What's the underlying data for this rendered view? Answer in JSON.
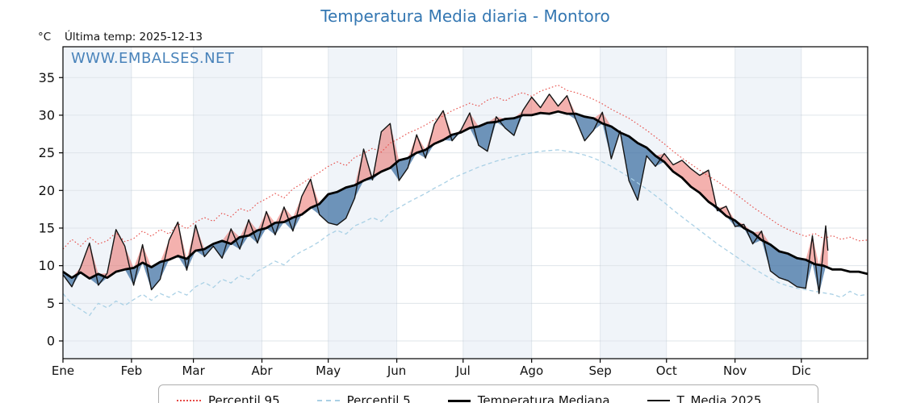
{
  "title": "Temperatura Media diaria - Montoro",
  "header": {
    "unit": "°C",
    "last_temp": "Última temp: 2025-12-13"
  },
  "watermark": "WWW.EMBALSES.NET",
  "colors": {
    "title_blue": "#3477b2",
    "watermark_blue": "#3a79b5",
    "p95_red": "#e64a45",
    "p5_blue": "#a9d0e5",
    "median_black": "#000000",
    "t2025_black": "#141414",
    "fill_above": "rgba(228,68,62,0.42)",
    "fill_below": "rgba(47,100,155,0.68)",
    "band_shade": "#f0f4f9",
    "grid": "#dfe5ea"
  },
  "chart_data": {
    "type": "line",
    "title": "Temperatura Media diaria - Montoro",
    "xlabel": "",
    "ylabel": "°C",
    "ylim": [
      -2.4,
      39.1
    ],
    "yticks": [
      0,
      5,
      10,
      15,
      20,
      25,
      30,
      35
    ],
    "grid": true,
    "legend_position": "bottom",
    "x_months": [
      "Ene",
      "Feb",
      "Mar",
      "Abr",
      "May",
      "Jun",
      "Jul",
      "Ago",
      "Sep",
      "Oct",
      "Nov",
      "Dic"
    ],
    "month_start_days": [
      1,
      32,
      60,
      91,
      121,
      152,
      182,
      213,
      244,
      274,
      305,
      335,
      366
    ],
    "shaded_months_alternate": true,
    "series": [
      {
        "name": "Percentil 95",
        "style": "dotted",
        "color": "#e64a45",
        "width": 1.1,
        "days": [
          1,
          5,
          9,
          13,
          17,
          21,
          25,
          29,
          33,
          37,
          41,
          45,
          49,
          53,
          57,
          61,
          65,
          69,
          73,
          77,
          81,
          85,
          89,
          93,
          97,
          101,
          105,
          109,
          113,
          117,
          121,
          125,
          129,
          133,
          137,
          141,
          145,
          149,
          153,
          157,
          161,
          165,
          169,
          173,
          177,
          181,
          185,
          189,
          193,
          197,
          201,
          205,
          209,
          213,
          217,
          221,
          225,
          229,
          233,
          237,
          241,
          245,
          249,
          253,
          257,
          261,
          265,
          269,
          273,
          277,
          281,
          285,
          289,
          293,
          297,
          301,
          305,
          309,
          313,
          317,
          321,
          325,
          329,
          333,
          337,
          341,
          345,
          349,
          353,
          357,
          361,
          365
        ],
        "values": [
          12.2,
          13.5,
          12.6,
          13.8,
          12.9,
          13.3,
          14.4,
          13.2,
          13.6,
          14.6,
          13.9,
          14.8,
          14.2,
          15.6,
          14.9,
          15.8,
          16.4,
          15.9,
          17.0,
          16.5,
          17.6,
          17.2,
          18.3,
          18.9,
          19.6,
          19.0,
          20.2,
          20.9,
          21.7,
          22.4,
          23.2,
          23.8,
          23.3,
          24.4,
          24.9,
          25.6,
          25.1,
          26.3,
          26.9,
          27.6,
          28.1,
          28.7,
          29.4,
          29.9,
          30.6,
          31.1,
          31.6,
          31.2,
          32.0,
          32.4,
          31.9,
          32.6,
          33.0,
          32.5,
          33.2,
          33.6,
          34.0,
          33.3,
          33.0,
          32.6,
          32.1,
          31.5,
          30.8,
          30.2,
          29.6,
          28.8,
          28.0,
          27.1,
          26.2,
          25.2,
          24.3,
          23.5,
          22.7,
          21.9,
          21.2,
          20.4,
          19.6,
          18.7,
          17.8,
          17.0,
          16.2,
          15.4,
          14.8,
          14.3,
          13.9,
          14.3,
          13.6,
          14.0,
          13.5,
          13.8,
          13.3,
          13.4
        ]
      },
      {
        "name": "Percentil 5",
        "style": "dashed",
        "color": "#a9d0e5",
        "width": 1.3,
        "days": [
          1,
          5,
          9,
          13,
          17,
          21,
          25,
          29,
          33,
          37,
          41,
          45,
          49,
          53,
          57,
          61,
          65,
          69,
          73,
          77,
          81,
          85,
          89,
          93,
          97,
          101,
          105,
          109,
          113,
          117,
          121,
          125,
          129,
          133,
          137,
          141,
          145,
          149,
          153,
          157,
          161,
          165,
          169,
          173,
          177,
          181,
          185,
          189,
          193,
          197,
          201,
          205,
          209,
          213,
          217,
          221,
          225,
          229,
          233,
          237,
          241,
          245,
          249,
          253,
          257,
          261,
          265,
          269,
          273,
          277,
          281,
          285,
          289,
          293,
          297,
          301,
          305,
          309,
          313,
          317,
          321,
          325,
          329,
          333,
          337,
          341,
          345,
          349,
          353,
          357,
          361,
          365
        ],
        "values": [
          6.3,
          4.9,
          4.2,
          3.4,
          5.0,
          4.4,
          5.3,
          4.7,
          5.5,
          6.2,
          5.4,
          6.3,
          5.8,
          6.6,
          6.1,
          7.2,
          7.8,
          7.1,
          8.2,
          7.7,
          8.7,
          8.2,
          9.3,
          9.9,
          10.6,
          10.1,
          11.2,
          11.9,
          12.5,
          13.2,
          14.1,
          14.7,
          14.2,
          15.3,
          15.8,
          16.4,
          15.9,
          17.1,
          17.7,
          18.4,
          19.0,
          19.6,
          20.3,
          20.9,
          21.6,
          22.1,
          22.6,
          23.1,
          23.5,
          23.9,
          24.2,
          24.5,
          24.8,
          25.0,
          25.2,
          25.3,
          25.4,
          25.2,
          25.0,
          24.7,
          24.3,
          23.8,
          23.2,
          22.5,
          21.8,
          21.0,
          20.2,
          19.3,
          18.4,
          17.4,
          16.5,
          15.6,
          14.7,
          13.8,
          12.9,
          12.1,
          11.3,
          10.5,
          9.7,
          9.0,
          8.3,
          7.7,
          7.3,
          7.0,
          6.8,
          6.6,
          6.4,
          6.2,
          5.8,
          6.6,
          6.0,
          6.2
        ]
      },
      {
        "name": "Temperatura Mediana",
        "style": "solid",
        "color": "#000000",
        "width": 2.8,
        "days": [
          1,
          5,
          9,
          13,
          17,
          21,
          25,
          29,
          33,
          37,
          41,
          45,
          49,
          53,
          57,
          61,
          65,
          69,
          73,
          77,
          81,
          85,
          89,
          93,
          97,
          101,
          105,
          109,
          113,
          117,
          121,
          125,
          129,
          133,
          137,
          141,
          145,
          149,
          153,
          157,
          161,
          165,
          169,
          173,
          177,
          181,
          185,
          189,
          193,
          197,
          201,
          205,
          209,
          213,
          217,
          221,
          225,
          229,
          233,
          237,
          241,
          245,
          249,
          253,
          257,
          261,
          265,
          269,
          273,
          277,
          281,
          285,
          289,
          293,
          297,
          301,
          305,
          309,
          313,
          317,
          321,
          325,
          329,
          333,
          337,
          341,
          345,
          349,
          353,
          357,
          361,
          365
        ],
        "values": [
          9.2,
          8.4,
          9.1,
          8.3,
          8.9,
          8.4,
          9.2,
          9.5,
          9.7,
          10.4,
          9.8,
          10.5,
          10.8,
          11.3,
          10.9,
          12.0,
          12.2,
          12.9,
          13.3,
          12.9,
          13.8,
          14.0,
          14.7,
          15.0,
          15.7,
          15.8,
          16.4,
          16.8,
          17.7,
          18.2,
          19.5,
          19.8,
          20.4,
          20.7,
          21.3,
          21.8,
          22.5,
          23.0,
          24.0,
          24.3,
          25.0,
          25.4,
          26.2,
          26.7,
          27.4,
          27.7,
          28.3,
          28.5,
          29.0,
          29.1,
          29.5,
          29.6,
          30.0,
          30.0,
          30.3,
          30.2,
          30.5,
          30.2,
          30.2,
          29.8,
          29.6,
          28.9,
          28.5,
          27.7,
          27.2,
          26.3,
          25.7,
          24.6,
          23.8,
          22.5,
          21.7,
          20.5,
          19.7,
          18.5,
          17.7,
          16.6,
          16.0,
          15.0,
          14.4,
          13.4,
          12.8,
          11.9,
          11.6,
          11.0,
          10.8,
          10.2,
          10.0,
          9.5,
          9.5,
          9.2,
          9.2,
          8.9
        ]
      },
      {
        "name": "T. Media 2025",
        "style": "solid",
        "color": "#141414",
        "width": 1.4,
        "days": [
          1,
          5,
          9,
          13,
          17,
          21,
          25,
          29,
          33,
          37,
          41,
          45,
          49,
          53,
          57,
          61,
          65,
          69,
          73,
          77,
          81,
          85,
          89,
          93,
          97,
          101,
          105,
          109,
          113,
          117,
          121,
          125,
          129,
          133,
          137,
          141,
          145,
          149,
          153,
          157,
          161,
          165,
          169,
          173,
          177,
          181,
          185,
          189,
          193,
          197,
          201,
          205,
          209,
          213,
          217,
          221,
          225,
          229,
          233,
          237,
          241,
          245,
          249,
          253,
          257,
          261,
          265,
          269,
          273,
          277,
          281,
          285,
          289,
          293,
          297,
          301,
          305,
          309,
          313,
          317,
          321,
          325,
          329,
          333,
          337,
          340,
          343,
          346,
          347
        ],
        "values": [
          8.8,
          7.2,
          9.8,
          13.0,
          7.4,
          9.0,
          14.8,
          12.6,
          7.4,
          12.8,
          6.8,
          8.2,
          13.4,
          15.8,
          9.4,
          15.4,
          11.2,
          12.6,
          11.0,
          14.9,
          12.2,
          16.1,
          13.0,
          17.2,
          14.1,
          17.8,
          14.6,
          19.2,
          21.5,
          16.8,
          15.7,
          15.4,
          16.3,
          19.0,
          25.5,
          21.4,
          27.8,
          28.9,
          21.3,
          23.0,
          27.4,
          24.3,
          28.8,
          30.6,
          26.6,
          28.0,
          30.3,
          26.0,
          25.2,
          29.8,
          28.3,
          27.3,
          30.6,
          32.4,
          31.0,
          32.8,
          31.2,
          32.6,
          29.4,
          26.6,
          28.0,
          30.4,
          24.2,
          27.9,
          21.3,
          18.7,
          24.6,
          23.2,
          24.9,
          23.4,
          24.0,
          22.9,
          22.0,
          22.7,
          17.3,
          17.9,
          15.2,
          15.5,
          12.9,
          14.6,
          9.3,
          8.4,
          8.0,
          7.2,
          7.0,
          14.0,
          6.3,
          15.3,
          12.0
        ]
      }
    ],
    "fills": {
      "between": [
        "T. Media 2025",
        "Temperatura Mediana"
      ],
      "above_color": "rgba(228,68,62,0.42)",
      "below_color": "rgba(47,100,155,0.68)"
    }
  },
  "legend": {
    "items": [
      {
        "label": "Percentil 95"
      },
      {
        "label": "Percentil 5"
      },
      {
        "label": "Temperatura Mediana"
      },
      {
        "label": "T. Media 2025"
      }
    ]
  }
}
